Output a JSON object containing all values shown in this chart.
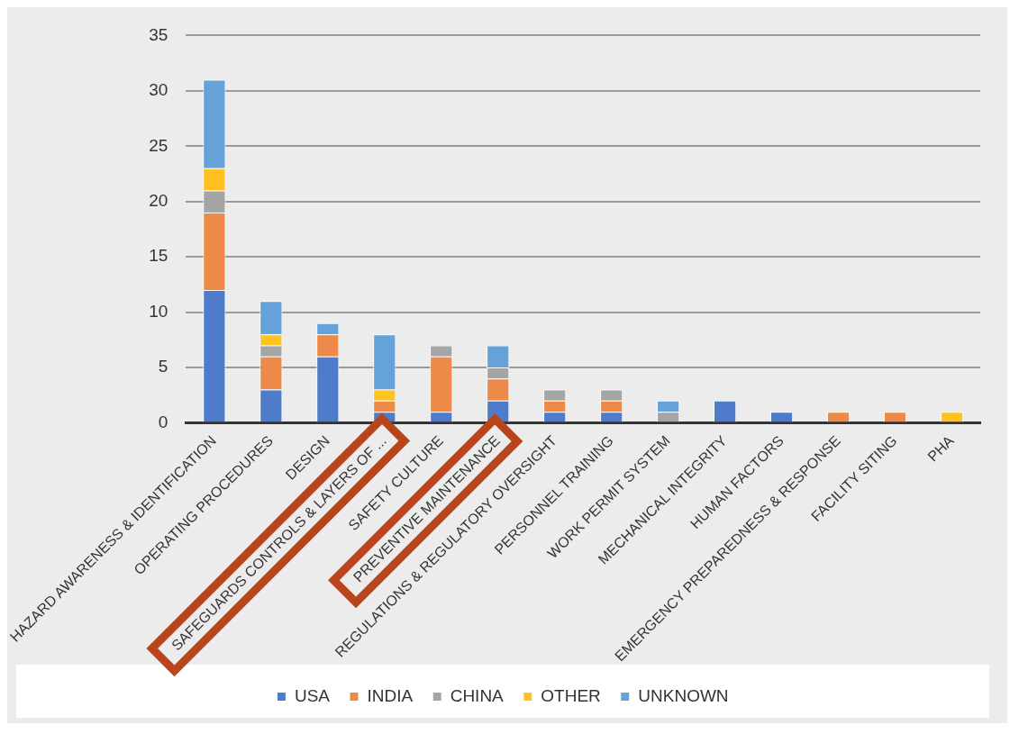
{
  "chart_data": {
    "type": "bar",
    "stacked": true,
    "categories": [
      "HAZARD AWARENESS & IDENTIFICATION",
      "OPERATING PROCEDURES",
      "DESIGN",
      "SAFEGUARDS CONTROLS & LAYERS OF ...",
      "SAFETY CULTURE",
      "PREVENTIVE MAINTENANCE",
      "REGULATIONS & REGULATORY OVERSIGHT",
      "PERSONNEL TRAINING",
      "WORK PERMIT SYSTEM",
      "MECHANICAL INTEGRITY",
      "HUMAN FACTORS",
      "EMERGENCY PREPAREDNESS & RESPONSE",
      "FACILITY SITING",
      "PHA"
    ],
    "series": [
      {
        "name": "USA",
        "color": "#4e7ccb",
        "values": [
          12,
          3,
          6,
          1,
          1,
          2,
          1,
          1,
          0,
          2,
          1,
          0,
          0,
          0
        ]
      },
      {
        "name": "INDIA",
        "color": "#ed8a48",
        "values": [
          7,
          3,
          2,
          1,
          5,
          2,
          1,
          1,
          0,
          0,
          0,
          1,
          1,
          0
        ]
      },
      {
        "name": "CHINA",
        "color": "#a5a5a5",
        "values": [
          2,
          1,
          0,
          0,
          1,
          1,
          1,
          1,
          1,
          0,
          0,
          0,
          0,
          0
        ]
      },
      {
        "name": "OTHER",
        "color": "#ffc220",
        "values": [
          2,
          1,
          0,
          1,
          0,
          0,
          0,
          0,
          0,
          0,
          0,
          0,
          0,
          1
        ]
      },
      {
        "name": "UNKNOWN",
        "color": "#64a2d9",
        "values": [
          8,
          3,
          1,
          5,
          0,
          2,
          0,
          0,
          1,
          0,
          0,
          0,
          0,
          0
        ]
      }
    ],
    "ylim": [
      0,
      35
    ],
    "yticks": [
      0,
      5,
      10,
      15,
      20,
      25,
      30,
      35
    ],
    "grid": "y",
    "legend": "bottom"
  }
}
